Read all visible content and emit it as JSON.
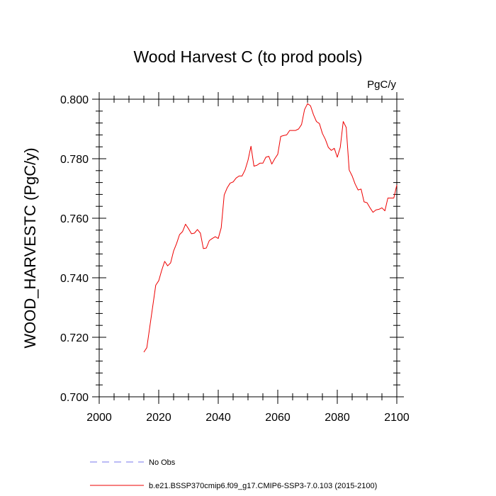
{
  "chart_data": {
    "type": "line",
    "title": "Wood Harvest C (to prod pools)",
    "units": "PgC/y",
    "xlabel": "",
    "ylabel": "WOOD_HARVESTC  (PgC/y)",
    "xlim": [
      2000,
      2100
    ],
    "ylim": [
      0.7,
      0.8
    ],
    "xticks": [
      "2000",
      "2020",
      "2040",
      "2060",
      "2080",
      "2100"
    ],
    "yticks": [
      "0.700",
      "0.720",
      "0.740",
      "0.760",
      "0.780",
      "0.800"
    ],
    "grid": false,
    "legend": [
      {
        "label": "No Obs",
        "color": "#7777ee",
        "style": "dashed"
      },
      {
        "label": "b.e21.BSSP370cmip6.f09_g17.CMIP6-SSP3-7.0.103 (2015-2100)",
        "color": "#ee0000",
        "style": "solid"
      }
    ],
    "series": [
      {
        "name": "b.e21.BSSP370cmip6.f09_g17.CMIP6-SSP3-7.0.103 (2015-2100)",
        "color": "#ee0000",
        "x": [
          2015,
          2016,
          2017,
          2018,
          2019,
          2020,
          2021,
          2022,
          2023,
          2024,
          2025,
          2026,
          2027,
          2028,
          2029,
          2030,
          2031,
          2032,
          2033,
          2034,
          2035,
          2036,
          2037,
          2038,
          2039,
          2040,
          2041,
          2042,
          2043,
          2044,
          2045,
          2046,
          2047,
          2048,
          2049,
          2050,
          2051,
          2052,
          2053,
          2054,
          2055,
          2056,
          2057,
          2058,
          2059,
          2060,
          2061,
          2062,
          2063,
          2064,
          2065,
          2066,
          2067,
          2068,
          2069,
          2070,
          2071,
          2072,
          2073,
          2074,
          2075,
          2076,
          2077,
          2078,
          2079,
          2080,
          2081,
          2082,
          2083,
          2084,
          2085,
          2086,
          2087,
          2088,
          2089,
          2090,
          2091,
          2092,
          2093,
          2094,
          2095,
          2096,
          2097,
          2098,
          2099,
          2100
        ],
        "y": [
          0.715,
          0.7165,
          0.7235,
          0.7305,
          0.7375,
          0.739,
          0.7425,
          0.7455,
          0.744,
          0.745,
          0.749,
          0.7515,
          0.7545,
          0.7555,
          0.758,
          0.7565,
          0.7548,
          0.755,
          0.7562,
          0.755,
          0.7498,
          0.75,
          0.7525,
          0.7532,
          0.7538,
          0.7532,
          0.7568,
          0.7678,
          0.7702,
          0.7718,
          0.7722,
          0.7735,
          0.7742,
          0.7742,
          0.7762,
          0.7795,
          0.7842,
          0.7775,
          0.7778,
          0.7785,
          0.7785,
          0.7805,
          0.7808,
          0.7782,
          0.78,
          0.7815,
          0.7875,
          0.7878,
          0.788,
          0.7895,
          0.7895,
          0.7895,
          0.79,
          0.7915,
          0.7965,
          0.7985,
          0.7978,
          0.7948,
          0.7925,
          0.7918,
          0.7885,
          0.7865,
          0.7838,
          0.7828,
          0.7835,
          0.7805,
          0.7838,
          0.7925,
          0.7905,
          0.7762,
          0.7742,
          0.7715,
          0.7695,
          0.7698,
          0.7655,
          0.7652,
          0.7635,
          0.762,
          0.7628,
          0.763,
          0.7635,
          0.7625,
          0.7668,
          0.7668,
          0.7668,
          0.7712
        ]
      }
    ]
  }
}
